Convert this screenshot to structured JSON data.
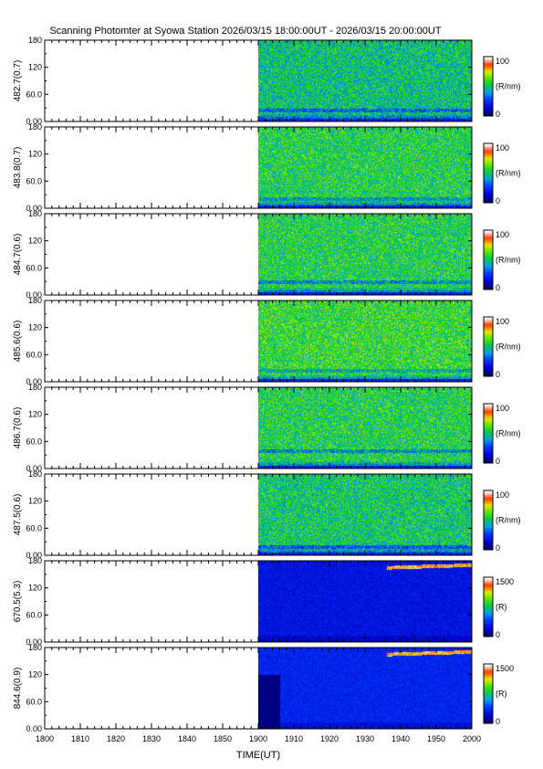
{
  "chart_data": {
    "type": "heatmap",
    "title": "Scanning Photomter at Syowa Station 2026/03/15 18:00:00UT - 2026/03/15 20:00:00UT",
    "xlabel": "TIME(UT)",
    "x_ticks": [
      "1800",
      "1810",
      "1820",
      "1830",
      "1840",
      "1850",
      "1900",
      "1910",
      "1920",
      "1930",
      "1940",
      "1950",
      "2000"
    ],
    "x_range_minutes": [
      0,
      120
    ],
    "data_start_minute": 60,
    "y_ticks": [
      "0.00",
      "60.0",
      "120",
      "180"
    ],
    "y_range": [
      0,
      180
    ],
    "panels": [
      {
        "ylabel": "482.7(0.7)",
        "cbar_max": "100",
        "cbar_min": "0",
        "cbar_unit": "(R/nm)",
        "scale": "green",
        "level": 0.5,
        "band_y": 25,
        "band_strength": 0.35
      },
      {
        "ylabel": "483.8(0.7)",
        "cbar_max": "100",
        "cbar_min": "0",
        "cbar_unit": "(R/nm)",
        "scale": "green",
        "level": 0.55,
        "band_y": 22,
        "band_strength": 0.25
      },
      {
        "ylabel": "484.7(0.6)",
        "cbar_max": "100",
        "cbar_min": "0",
        "cbar_unit": "(R/nm)",
        "scale": "green",
        "level": 0.55,
        "band_y": 30,
        "band_strength": 0.3
      },
      {
        "ylabel": "485.6(0.6)",
        "cbar_max": "100",
        "cbar_min": "0",
        "cbar_unit": "(R/nm)",
        "scale": "green",
        "level": 0.58,
        "band_y": 25,
        "band_strength": 0.25
      },
      {
        "ylabel": "486.7(0.6)",
        "cbar_max": "100",
        "cbar_min": "0",
        "cbar_unit": "(R/nm)",
        "scale": "green",
        "level": 0.55,
        "band_y": 40,
        "band_strength": 0.3
      },
      {
        "ylabel": "487.5(0.6)",
        "cbar_max": "100",
        "cbar_min": "0",
        "cbar_unit": "(R/nm)",
        "scale": "green",
        "level": 0.52,
        "band_y": 20,
        "band_strength": 0.4
      },
      {
        "ylabel": "670.5(5.3)",
        "cbar_max": "1500",
        "cbar_min": "0",
        "cbar_unit": "(R)",
        "scale": "blue",
        "level": 0.18,
        "band_y": 170,
        "band_strength": 0.8
      },
      {
        "ylabel": "844.6(0.9)",
        "cbar_max": "1500",
        "cbar_min": "0",
        "cbar_unit": "(R)",
        "scale": "blue",
        "level": 0.22,
        "band_y": 170,
        "band_strength": 0.8
      }
    ]
  }
}
